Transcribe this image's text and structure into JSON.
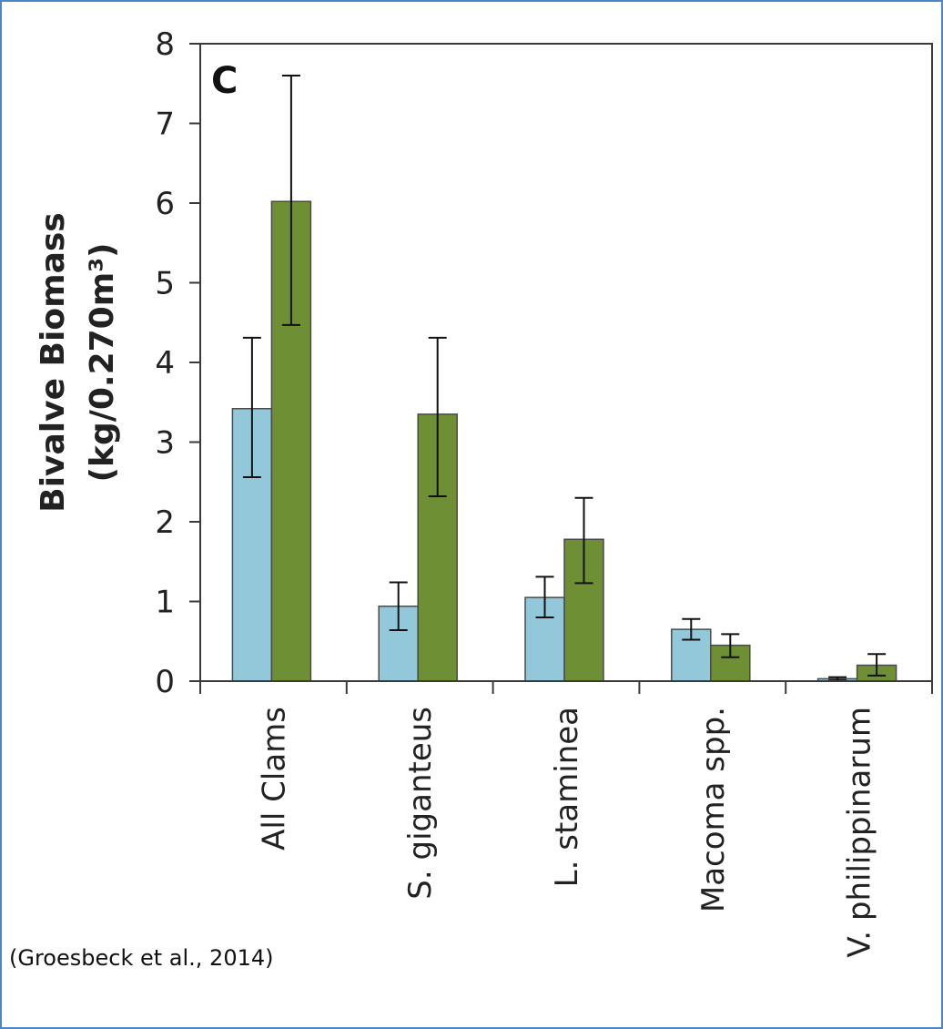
{
  "panel_label": "C",
  "citation": "(Groesbeck et al., 2014)",
  "colors": {
    "series_a": "#93c8da",
    "series_b": "#6f8f35",
    "background": "#ffffff",
    "frame": "#3a3a3a",
    "page_border": "#4a86c8"
  },
  "chart_data": {
    "type": "bar",
    "title": "",
    "xlabel": "",
    "ylabel_line1": "Bivalve Biomass",
    "ylabel_line2": "(kg/0.270m³)",
    "ylim": [
      0,
      8
    ],
    "yticks": [
      0,
      1,
      2,
      3,
      4,
      5,
      6,
      7,
      8
    ],
    "grid": false,
    "legend": "none",
    "categories": [
      "All Clams",
      "S. giganteus",
      "L. staminea",
      "Macoma spp.",
      "V. philippinarum"
    ],
    "series": [
      {
        "color": "#93c8da",
        "values": [
          3.42,
          0.94,
          1.05,
          0.65,
          0.03
        ],
        "err_low": [
          2.56,
          0.64,
          0.8,
          0.52,
          0.01
        ],
        "err_high": [
          4.31,
          1.24,
          1.31,
          0.78,
          0.05
        ]
      },
      {
        "color": "#6f8f35",
        "values": [
          6.02,
          3.35,
          1.78,
          0.45,
          0.2
        ],
        "err_low": [
          4.47,
          2.32,
          1.23,
          0.3,
          0.07
        ],
        "err_high": [
          7.6,
          4.31,
          2.3,
          0.59,
          0.34
        ]
      }
    ]
  }
}
